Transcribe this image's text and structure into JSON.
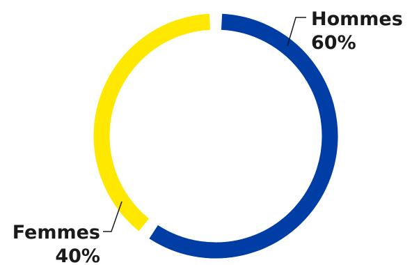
{
  "chart_data": {
    "type": "pie",
    "variant": "donut",
    "slices": [
      {
        "name": "Hommes",
        "value": 60,
        "value_label": "60%",
        "color": "#003DA5"
      },
      {
        "name": "Femmes",
        "value": 40,
        "value_label": "40%",
        "color": "#FFE800"
      }
    ],
    "title": "",
    "legend": "none"
  }
}
